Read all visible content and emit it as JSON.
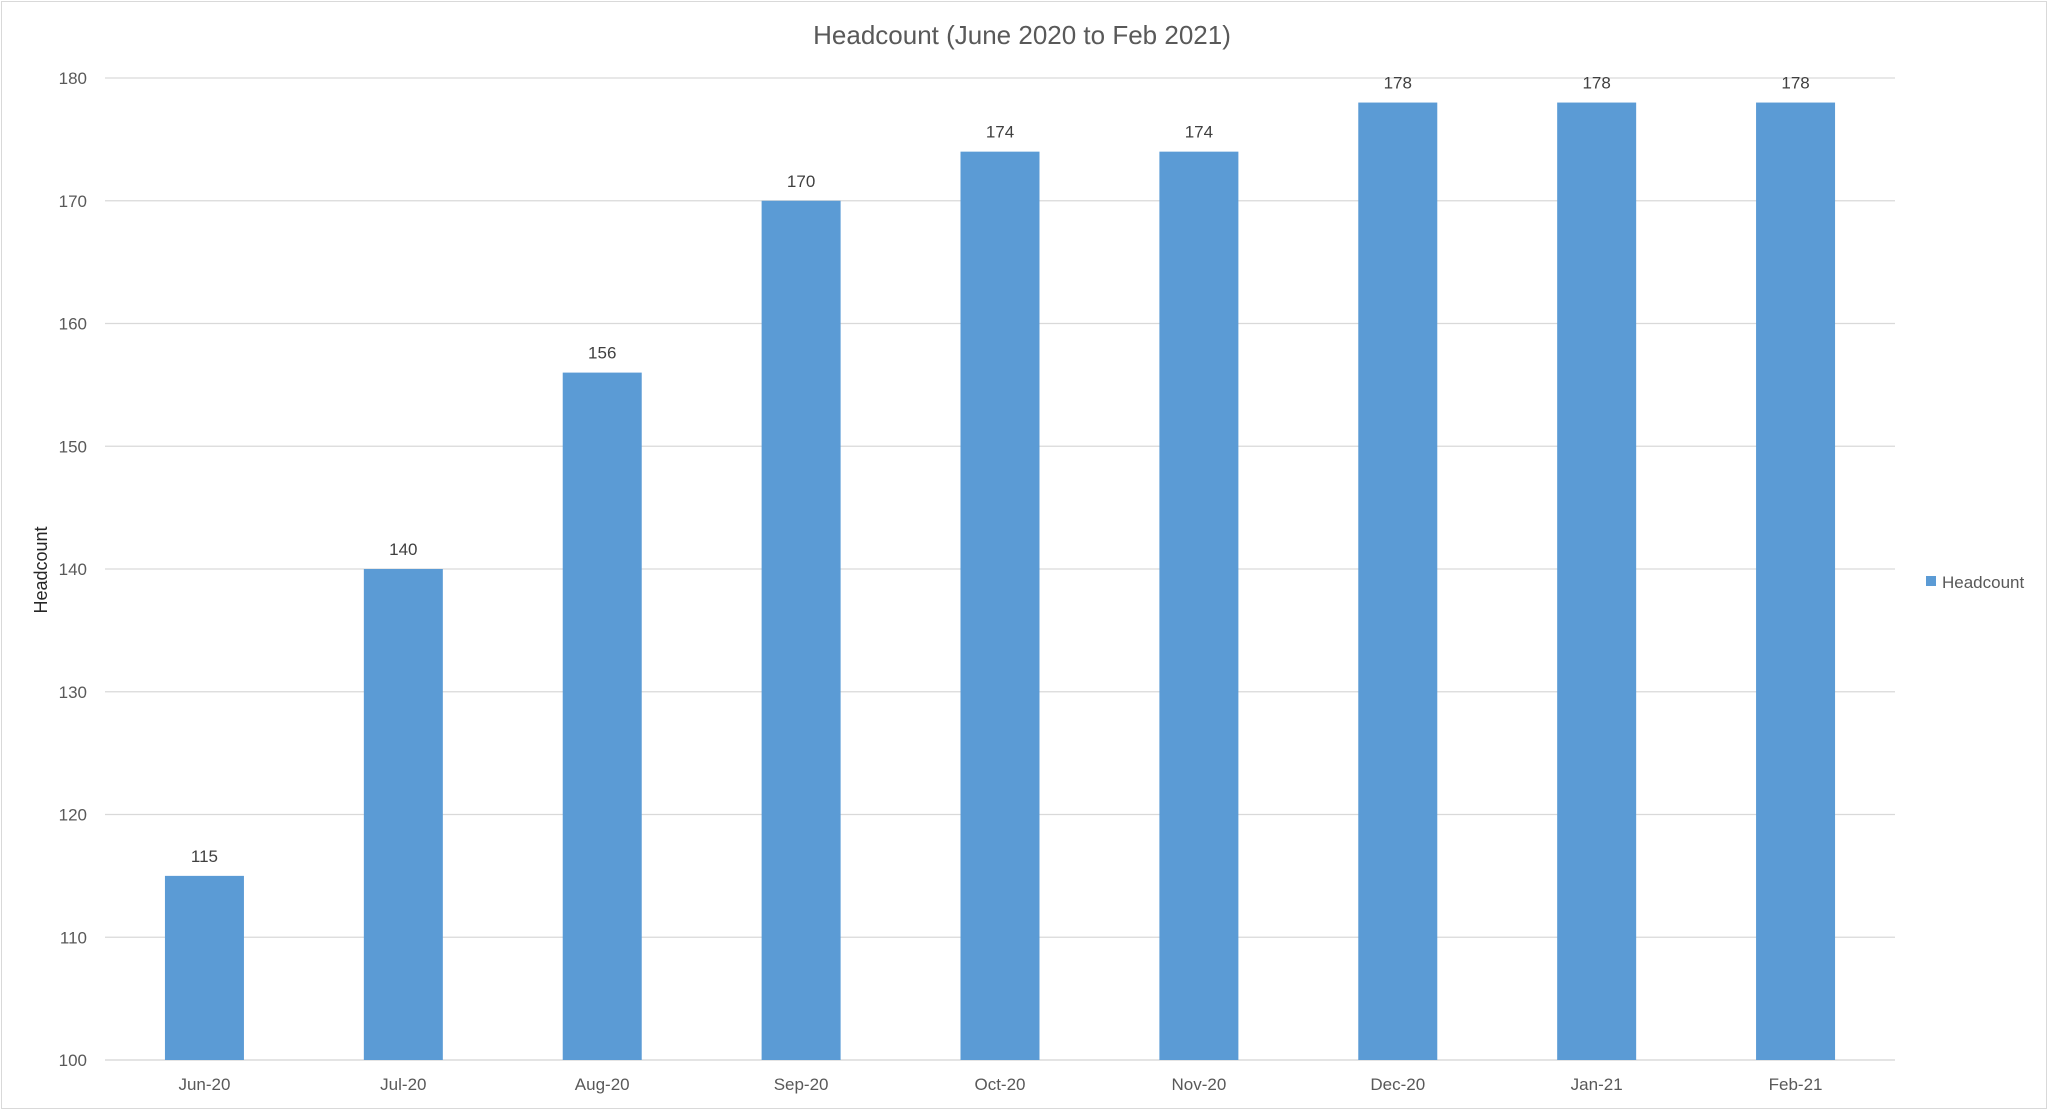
{
  "chart_data": {
    "type": "bar",
    "title": "Headcount (June 2020 to Feb 2021)",
    "xlabel": "",
    "ylabel": "Headcount",
    "categories": [
      "Jun-20",
      "Jul-20",
      "Aug-20",
      "Sep-20",
      "Oct-20",
      "Nov-20",
      "Dec-20",
      "Jan-21",
      "Feb-21"
    ],
    "series": [
      {
        "name": "Headcount",
        "values": [
          115,
          140,
          156,
          170,
          174,
          174,
          178,
          178,
          178
        ],
        "color": "#5b9bd5"
      }
    ],
    "ylim": [
      100,
      180
    ],
    "yticks": [
      100,
      110,
      120,
      130,
      140,
      150,
      160,
      170,
      180
    ],
    "grid": true,
    "data_labels": true,
    "legend_position": "right"
  }
}
